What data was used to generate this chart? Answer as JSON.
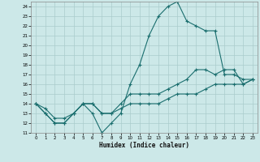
{
  "title": "",
  "xlabel": "Humidex (Indice chaleur)",
  "background_color": "#cce8e8",
  "grid_color": "#aacccc",
  "line_color": "#1a6e6e",
  "xlim": [
    -0.5,
    23.5
  ],
  "ylim": [
    11,
    24.5
  ],
  "yticks": [
    11,
    12,
    13,
    14,
    15,
    16,
    17,
    18,
    19,
    20,
    21,
    22,
    23,
    24
  ],
  "xticks": [
    0,
    1,
    2,
    3,
    4,
    5,
    6,
    7,
    8,
    9,
    10,
    11,
    12,
    13,
    14,
    15,
    16,
    17,
    18,
    19,
    20,
    21,
    22,
    23
  ],
  "line1_x": [
    0,
    1,
    2,
    3,
    4,
    5,
    6,
    7,
    8,
    9,
    10,
    11,
    12,
    13,
    14,
    15,
    16,
    17,
    18,
    19,
    20,
    21,
    22,
    23
  ],
  "line1_y": [
    14,
    13,
    12,
    12,
    13,
    14,
    13,
    11,
    12,
    13,
    16,
    18,
    21,
    23,
    24,
    24.5,
    22.5,
    22,
    21.5,
    21.5,
    17,
    17,
    16.5,
    16.5
  ],
  "line2_x": [
    0,
    1,
    2,
    3,
    4,
    5,
    6,
    7,
    8,
    9,
    10,
    11,
    12,
    13,
    14,
    15,
    16,
    17,
    18,
    19,
    20,
    21,
    22,
    23
  ],
  "line2_y": [
    14,
    13.5,
    12.5,
    12.5,
    13,
    14,
    14,
    13,
    13,
    14,
    15,
    15,
    15,
    15,
    15.5,
    16,
    16.5,
    17.5,
    17.5,
    17,
    17.5,
    17.5,
    16,
    16.5
  ],
  "line3_x": [
    0,
    1,
    2,
    3,
    4,
    5,
    6,
    7,
    8,
    9,
    10,
    11,
    12,
    13,
    14,
    15,
    16,
    17,
    18,
    19,
    20,
    21,
    22,
    23
  ],
  "line3_y": [
    14,
    13,
    12,
    12,
    13,
    14,
    14,
    13,
    13,
    13.5,
    14,
    14,
    14,
    14,
    14.5,
    15,
    15,
    15,
    15.5,
    16,
    16,
    16,
    16,
    16.5
  ]
}
